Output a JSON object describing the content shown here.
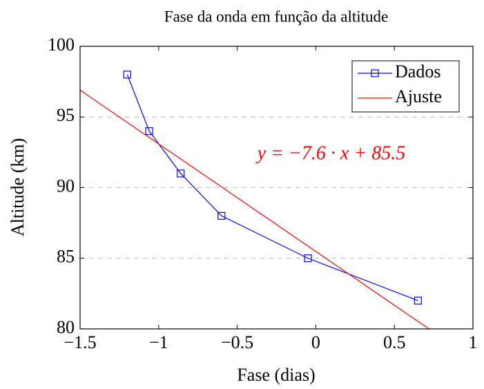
{
  "chart_data": {
    "type": "line",
    "title": "Fase da onda em função da altitude",
    "xlabel": "Fase (dias)",
    "ylabel": "Altitude (km)",
    "annotation": "y = −7.6 · x + 85.5",
    "series": [
      {
        "name": "Dados",
        "color": "#0000ff",
        "marker": "square",
        "x": [
          -1.2,
          -1.06,
          -0.86,
          -0.6,
          -0.05,
          0.65
        ],
        "values": [
          98,
          94,
          91,
          88,
          85,
          82
        ]
      },
      {
        "name": "Ajuste",
        "color": "#ff0000",
        "x": [
          -1.5,
          0.72
        ],
        "values": [
          96.9,
          80
        ]
      }
    ],
    "xlim": [
      -1.5,
      1
    ],
    "xticks": [
      {
        "value": -1.5,
        "label": "−1.5"
      },
      {
        "value": -1,
        "label": "−1"
      },
      {
        "value": -0.5,
        "label": "−0.5"
      },
      0,
      0.5,
      1
    ],
    "ylim": [
      80,
      100
    ],
    "yticks": [
      80,
      85,
      90,
      95,
      100
    ],
    "grid": true,
    "legend": "upper right"
  }
}
